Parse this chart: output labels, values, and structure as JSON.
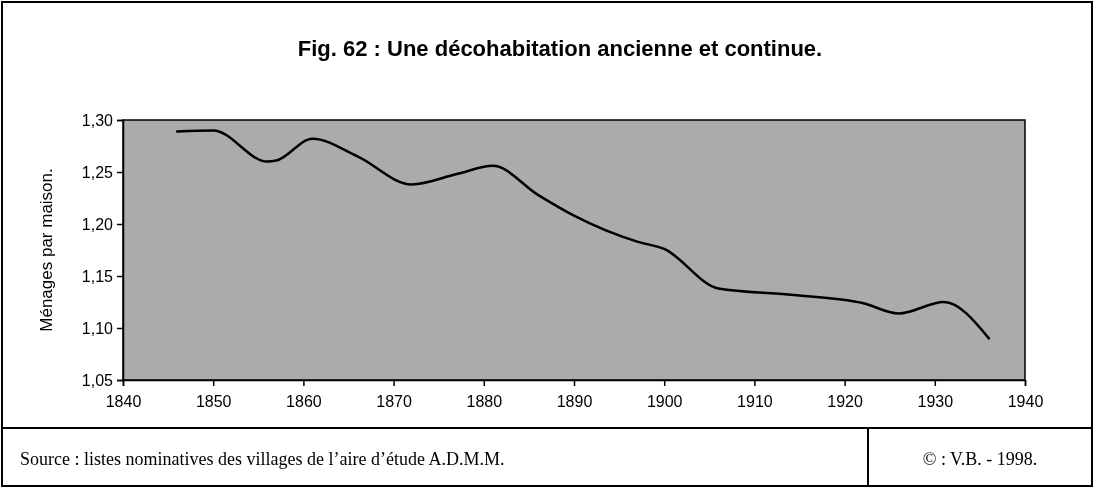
{
  "chart_data": {
    "type": "line",
    "title": "Fig. 62 : Une décohabitation ancienne et continue.",
    "ylabel": "Ménages par maison.",
    "x": [
      1846,
      1850,
      1856,
      1857,
      1861,
      1866,
      1872,
      1877,
      1881,
      1886,
      1890,
      1897,
      1900,
      1906,
      1914,
      1922,
      1926,
      1931,
      1936
    ],
    "series": [
      {
        "color": "#000000",
        "values": [
          1.289,
          1.29,
          1.26,
          1.261,
          1.282,
          1.265,
          1.238,
          1.248,
          1.256,
          1.228,
          1.208,
          1.183,
          1.176,
          1.138,
          1.132,
          1.124,
          1.114,
          1.125,
          1.09
        ]
      }
    ],
    "xlim": [
      1840,
      1940
    ],
    "xticks": [
      1840,
      1850,
      1860,
      1870,
      1880,
      1890,
      1900,
      1910,
      1920,
      1930,
      1940
    ],
    "ylim": [
      1.05,
      1.3
    ],
    "yticks": [
      {
        "value": 1.05,
        "label": "1,05"
      },
      {
        "value": 1.1,
        "label": "1,10"
      },
      {
        "value": 1.15,
        "label": "1,15"
      },
      {
        "value": 1.2,
        "label": "1,20"
      },
      {
        "value": 1.25,
        "label": "1,25"
      },
      {
        "value": 1.3,
        "label": "1,30"
      }
    ],
    "grid": false,
    "marker": "none",
    "line_style": "solid",
    "annotations": [
      "Source : listes nominatives des villages de l’aire d’étude A.D.M.M.",
      "© : V.B. - 1998."
    ]
  }
}
